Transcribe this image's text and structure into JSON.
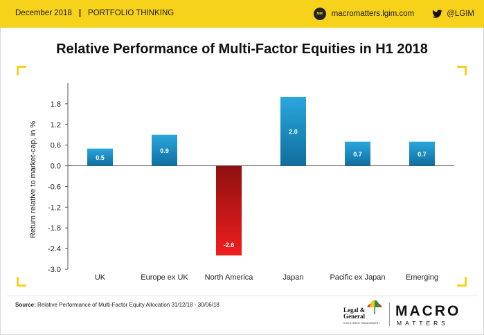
{
  "header": {
    "date": "December 2018",
    "separator": "|",
    "section": "PORTFOLIO THINKING",
    "website": "macromatters.lgim.com",
    "twitter_handle": "@LGIM",
    "accent_color": "#f7d21a"
  },
  "icons": {
    "site": "macro-matters-badge-icon",
    "twitter": "twitter-bird-icon"
  },
  "chart_data": {
    "type": "bar",
    "title": "Relative Performance of Multi-Factor Equities in H1 2018",
    "ylabel": "Return relative to market-cap, in %",
    "xlabel": "",
    "categories": [
      "UK",
      "Europe ex UK",
      "North America",
      "Japan",
      "Pacific ex Japan",
      "Emerging"
    ],
    "values": [
      0.5,
      0.9,
      -2.6,
      2.0,
      0.7,
      0.7
    ],
    "data_labels": [
      "0.5",
      "0.9",
      "-2.6",
      "2.0",
      "0.7",
      "0.7"
    ],
    "ylim": [
      -3.0,
      2.4
    ],
    "yticks": [
      1.8,
      1.2,
      0.6,
      0.0,
      -0.6,
      -1.2,
      -1.8,
      -2.4,
      -3.0
    ],
    "ytick_labels": [
      "1.8",
      "1.2",
      "0.6",
      "0.0",
      "-0.6",
      "-1.2",
      "-1.8",
      "-2.4",
      "-3.0"
    ],
    "positive_color": "#1a8fc4",
    "negative_color": "#d7191c",
    "grid": false,
    "legend": "none"
  },
  "footer": {
    "source_label": "Source:",
    "source_text": "Relative Performance of Multi-Factor Equity Allocation 31/12/18 - 30/06/18",
    "brand_lg_line1": "Legal &",
    "brand_lg_line2": "General",
    "brand_lg_sub": "INVESTMENT MANAGEMENT",
    "brand_macro": "MACRO",
    "brand_matters": "MATTERS"
  }
}
